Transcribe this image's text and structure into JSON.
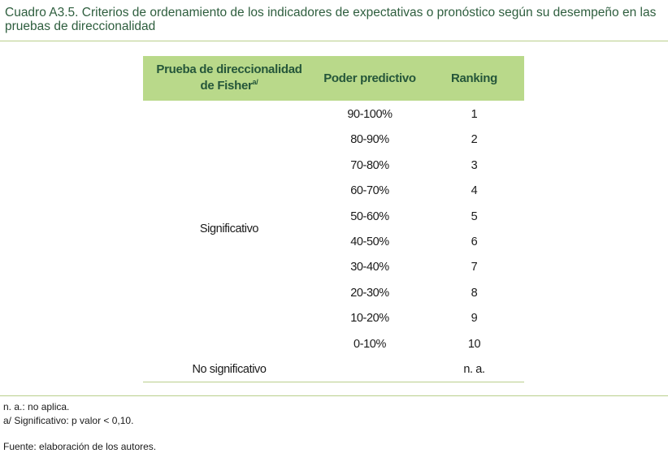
{
  "title": "Cuadro A3.5. Criterios de ordenamiento de los indicadores de expectativas o pronóstico según su desempeño  en las pruebas de direccionalidad",
  "table": {
    "headers": {
      "col1_line1": "Prueba de direccionalidad",
      "col1_line2": "de Fisher",
      "col1_sup": "a/",
      "col2": "Poder predictivo",
      "col3": "Ranking"
    },
    "significant_label": "Significativo",
    "rows": [
      {
        "poder": "90-100%",
        "ranking": "1"
      },
      {
        "poder": "80-90%",
        "ranking": "2"
      },
      {
        "poder": "70-80%",
        "ranking": "3"
      },
      {
        "poder": "60-70%",
        "ranking": "4"
      },
      {
        "poder": "50-60%",
        "ranking": "5"
      },
      {
        "poder": "40-50%",
        "ranking": "6"
      },
      {
        "poder": "30-40%",
        "ranking": "7"
      },
      {
        "poder": "20-30%",
        "ranking": "8"
      },
      {
        "poder": "10-20%",
        "ranking": "9"
      },
      {
        "poder": "0-10%",
        "ranking": "10"
      }
    ],
    "not_significant_label": "No significativo",
    "not_significant_ranking": "n. a."
  },
  "notes": {
    "na": "n. a.: no aplica.",
    "sig": "a/ Significativo: p valor < 0,10.",
    "source": "Fuente: elaboración de los autores."
  }
}
